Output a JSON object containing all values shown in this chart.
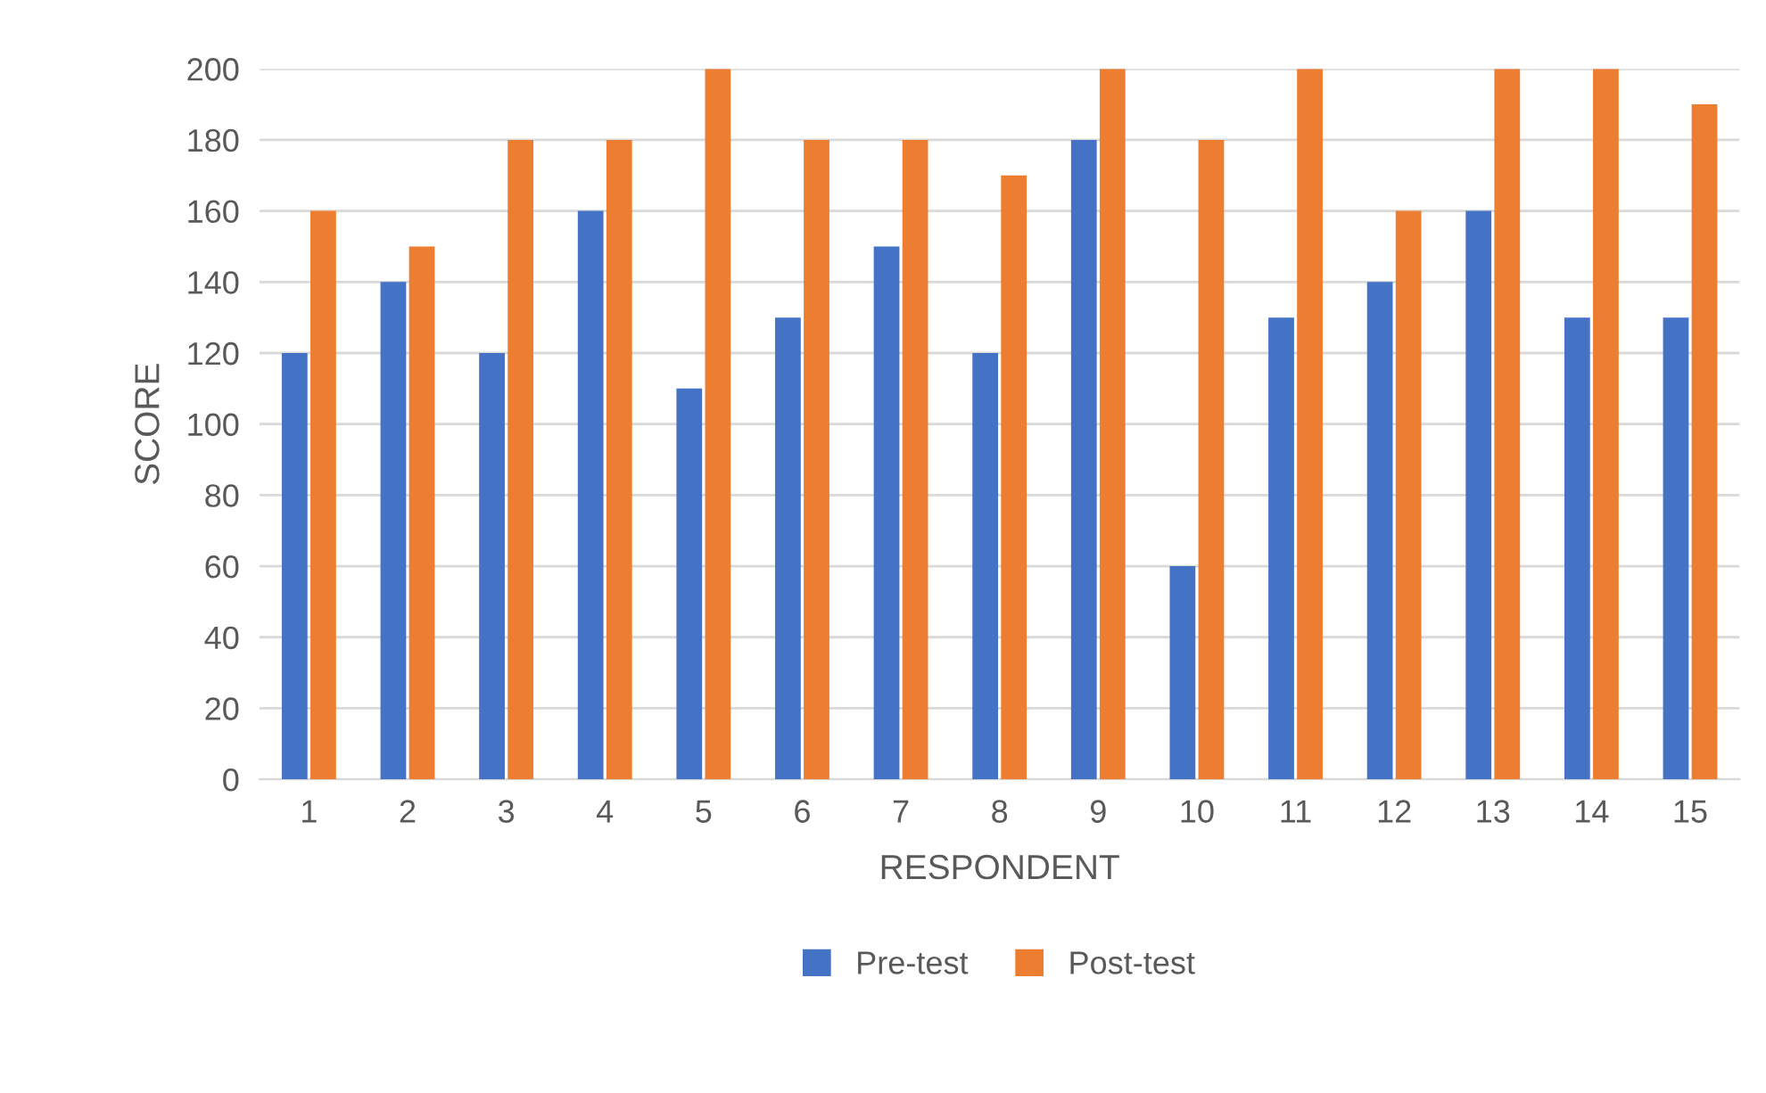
{
  "chart_data": {
    "type": "bar",
    "xlabel": "RESPONDENT",
    "ylabel": "SCORE",
    "categories": [
      "1",
      "2",
      "3",
      "4",
      "5",
      "6",
      "7",
      "8",
      "9",
      "10",
      "11",
      "12",
      "13",
      "14",
      "15"
    ],
    "series": [
      {
        "name": "Pre-test",
        "color": "#4472c4",
        "values": [
          120,
          140,
          120,
          160,
          110,
          130,
          150,
          120,
          180,
          60,
          130,
          140,
          160,
          130,
          130
        ]
      },
      {
        "name": "Post-test",
        "color": "#ed7d31",
        "values": [
          160,
          150,
          180,
          180,
          200,
          180,
          180,
          170,
          200,
          180,
          200,
          160,
          200,
          200,
          190
        ]
      }
    ],
    "ylim": [
      0,
      200
    ],
    "yticks": [
      0,
      20,
      40,
      60,
      80,
      100,
      120,
      140,
      160,
      180,
      200
    ],
    "grid": "y",
    "legend": "bottom"
  }
}
